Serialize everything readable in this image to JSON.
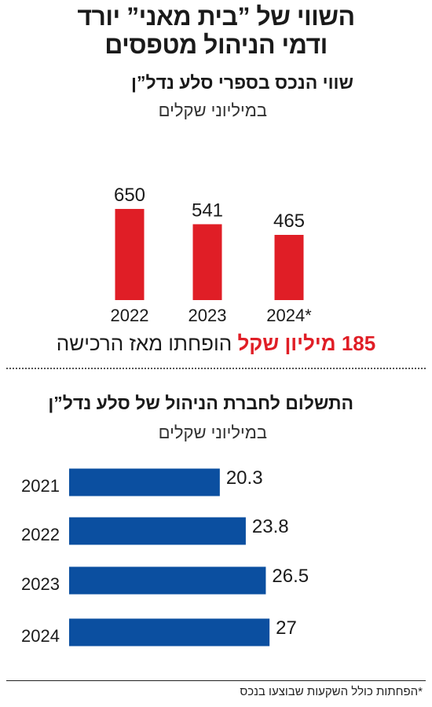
{
  "header": {
    "title_line1": "השווי של ”בית מאני” יורד",
    "title_line2": "ודמי הניהול מטפסים"
  },
  "highlight": {
    "amount": "185 מיליון שקל",
    "rest": " הופחתו מאז הרכישה"
  },
  "footnote": "*הפחתות כולל השקעות שבוצעו בנכס",
  "colors": {
    "bar_red": "#e01e26",
    "bar_blue": "#0b4fa0"
  },
  "chart_data": [
    {
      "type": "bar",
      "title": "שווי הנכס בספרי סלע נדל”ן",
      "subtitle": "במיליוני שקלים",
      "categories": [
        "2022",
        "2023",
        "2024*"
      ],
      "values": [
        650,
        541,
        465
      ],
      "value_labels": [
        "650",
        "541",
        "465"
      ],
      "grid": false,
      "legend": "none"
    },
    {
      "type": "bar",
      "orientation": "horizontal",
      "title": "התשלום לחברת הניהול של סלע נדל”ן",
      "subtitle": "במיליוני שקלים",
      "categories": [
        "2021",
        "2022",
        "2023",
        "2024"
      ],
      "values": [
        20.3,
        23.8,
        26.5,
        27
      ],
      "value_labels": [
        "20.3",
        "23.8",
        "26.5",
        "27"
      ],
      "grid": false,
      "legend": "none"
    }
  ]
}
